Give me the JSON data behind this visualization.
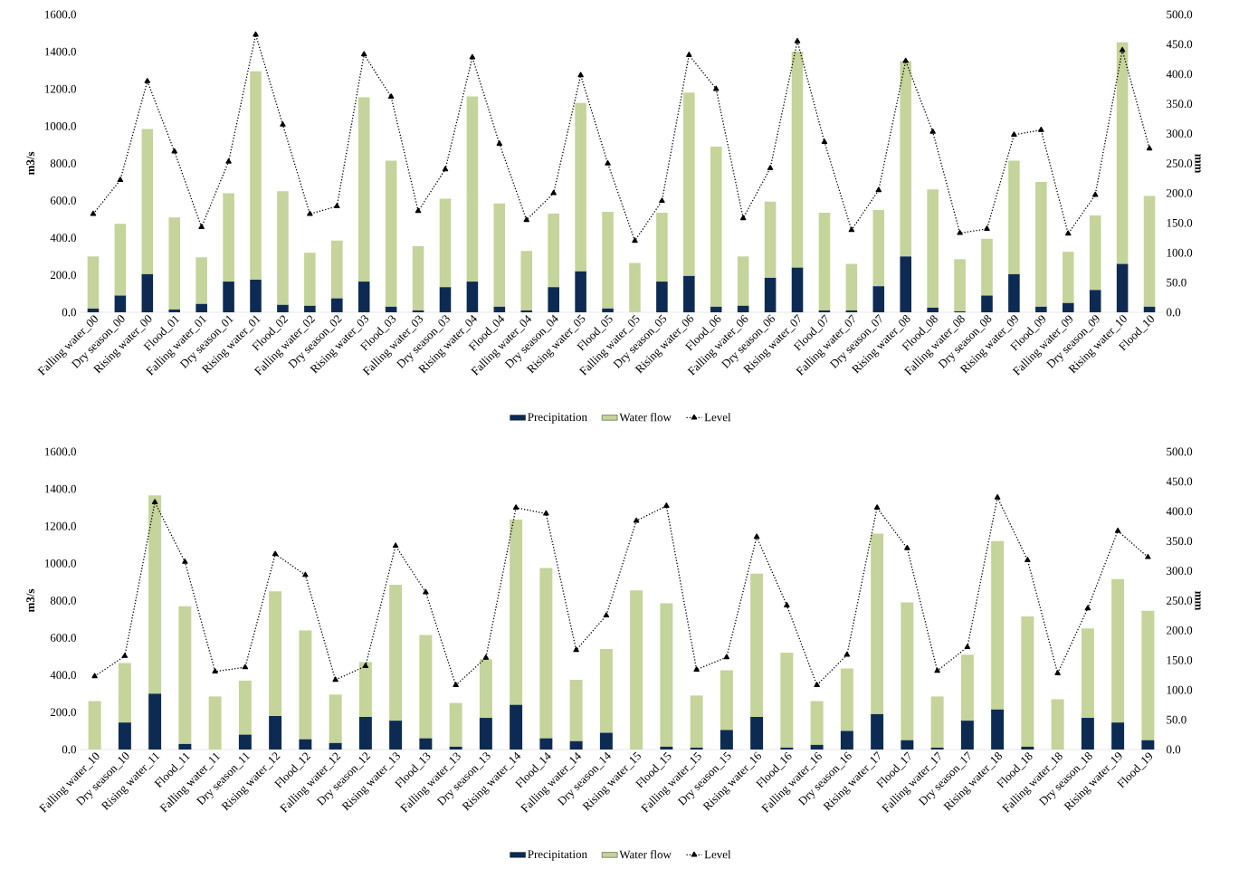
{
  "chart_data": [
    {
      "type": "bar",
      "stacked": true,
      "ylabel": "m3/s",
      "y2label": "mm",
      "legend": "bottom",
      "categories": [
        "Falling water_00",
        "Dry season_00",
        "Rising water_00",
        "Flood_01",
        "Falling water_01",
        "Dry season_01",
        "Rising water_01",
        "Flood_02",
        "Falling water_02",
        "Dry season_02",
        "Rising water_03",
        "Flood_03",
        "Falling water_03",
        "Dry season_03",
        "Rising water_04",
        "Flood_04",
        "Falling water_04",
        "Dry season_04",
        "Rising water_05",
        "Flood_05",
        "Falling water_05",
        "Dry season_05",
        "Rising water_06",
        "Flood_06",
        "Falling water_06",
        "Dry season_06",
        "Rising water_07",
        "Flood_07",
        "Falling water_07",
        "Dry season_07",
        "Rising water_08",
        "Flood_08",
        "Falling water_08",
        "Dry season_08",
        "Rising water_09",
        "Flood_09",
        "Falling water_09",
        "Dry season_09",
        "Rising water_10",
        "Flood_10"
      ],
      "series": [
        {
          "name": "Precipitation",
          "type": "bar",
          "color": "#0d2b52",
          "values": [
            20,
            90,
            205,
            15,
            45,
            165,
            175,
            40,
            35,
            75,
            165,
            30,
            10,
            135,
            165,
            30,
            10,
            135,
            220,
            20,
            0,
            165,
            195,
            30,
            35,
            185,
            240,
            10,
            10,
            140,
            300,
            25,
            5,
            90,
            205,
            30,
            50,
            120,
            260,
            30
          ]
        },
        {
          "name": "Water flow",
          "type": "bar",
          "color": "#c4d49a",
          "values": [
            280,
            385,
            780,
            495,
            250,
            475,
            1120,
            610,
            285,
            310,
            990,
            785,
            345,
            475,
            995,
            555,
            320,
            395,
            905,
            520,
            265,
            370,
            985,
            860,
            265,
            410,
            1160,
            525,
            250,
            410,
            1050,
            635,
            280,
            305,
            610,
            670,
            275,
            400,
            1190,
            595
          ]
        },
        {
          "name": "Level",
          "type": "line",
          "axis": "y2",
          "color": "#000000",
          "marker": "triangle",
          "line_style": "dotted",
          "values": [
            165,
            222,
            388,
            270,
            143,
            253,
            466,
            315,
            165,
            178,
            433,
            362,
            170,
            240,
            428,
            283,
            155,
            200,
            398,
            250,
            120,
            187,
            432,
            375,
            158,
            242,
            455,
            286,
            138,
            205,
            422,
            303,
            133,
            140,
            298,
            306,
            132,
            197,
            440,
            275
          ]
        }
      ],
      "ylim": [
        0,
        1600
      ],
      "yticks": [
        {
          "value": 0,
          "label": "0.0"
        },
        {
          "value": 200,
          "label": "200.0"
        },
        {
          "value": 400,
          "label": "400.0"
        },
        {
          "value": 600,
          "label": "600.0"
        },
        {
          "value": 800,
          "label": "800.0"
        },
        {
          "value": 1000,
          "label": "1000.0"
        },
        {
          "value": 1200,
          "label": "1200.0"
        },
        {
          "value": 1400,
          "label": "1400.0"
        },
        {
          "value": 1600,
          "label": "1600.0"
        }
      ],
      "y2lim": [
        0,
        500
      ],
      "y2ticks": [
        {
          "value": 0,
          "label": "0.0"
        },
        {
          "value": 50,
          "label": "50.0"
        },
        {
          "value": 100,
          "label": "100.0"
        },
        {
          "value": 150,
          "label": "150.0"
        },
        {
          "value": 200,
          "label": "200.0"
        },
        {
          "value": 250,
          "label": "250.0"
        },
        {
          "value": 300,
          "label": "300.0"
        },
        {
          "value": 350,
          "label": "350.0"
        },
        {
          "value": 400,
          "label": "400.0"
        },
        {
          "value": 450,
          "label": "450.0"
        },
        {
          "value": 500,
          "label": "500.0"
        }
      ]
    },
    {
      "type": "bar",
      "stacked": true,
      "ylabel": "m3/s",
      "y2label": "mm",
      "legend": "bottom",
      "categories": [
        "Falling water_10",
        "Dry season_10",
        "Rising water_11",
        "Flood_11",
        "Falling water_11",
        "Dry season_11",
        "Rising water_12",
        "Flood_12",
        "Falling water_12",
        "Dry season_12",
        "Rising water_13",
        "Flood_13",
        "Falling water_13",
        "Dry season_13",
        "Rising water_14",
        "Flood_14",
        "Falling water_14",
        "Dry season_14",
        "Rising water_15",
        "Flood_15",
        "Falling water_15",
        "Dry season_15",
        "Rising water_16",
        "Flood_16",
        "Falling water_16",
        "Dry season_16",
        "Rising water_17",
        "Flood_17",
        "Falling water_17",
        "Dry season_17",
        "Rising water_18",
        "Flood_18",
        "Falling water_18",
        "Dry season_18",
        "Rising water_19",
        "Flood_19"
      ],
      "series": [
        {
          "name": "Precipitation",
          "type": "bar",
          "color": "#0d2b52",
          "values": [
            0,
            145,
            300,
            30,
            0,
            80,
            180,
            55,
            35,
            175,
            155,
            60,
            15,
            170,
            240,
            60,
            45,
            90,
            0,
            15,
            10,
            105,
            175,
            10,
            25,
            100,
            190,
            50,
            10,
            155,
            215,
            15,
            0,
            170,
            145,
            50
          ]
        },
        {
          "name": "Water flow",
          "type": "bar",
          "color": "#c4d49a",
          "values": [
            260,
            320,
            1065,
            740,
            285,
            290,
            670,
            585,
            260,
            295,
            730,
            555,
            235,
            315,
            995,
            915,
            330,
            450,
            855,
            770,
            280,
            320,
            770,
            510,
            235,
            335,
            970,
            740,
            275,
            355,
            905,
            700,
            270,
            480,
            770,
            695
          ]
        },
        {
          "name": "Level",
          "type": "line",
          "axis": "y2",
          "color": "#000000",
          "marker": "triangle",
          "line_style": "dotted",
          "values": [
            123,
            157,
            415,
            315,
            131,
            138,
            328,
            293,
            117,
            140,
            342,
            264,
            108,
            154,
            406,
            396,
            167,
            225,
            384,
            409,
            134,
            155,
            357,
            242,
            108,
            159,
            406,
            338,
            132,
            172,
            423,
            318,
            128,
            237,
            367,
            323
          ]
        }
      ],
      "ylim": [
        0,
        1600
      ],
      "yticks": [
        {
          "value": 0,
          "label": "0.0"
        },
        {
          "value": 200,
          "label": "200.0"
        },
        {
          "value": 400,
          "label": "400.0"
        },
        {
          "value": 600,
          "label": "600.0"
        },
        {
          "value": 800,
          "label": "800.0"
        },
        {
          "value": 1000,
          "label": "1000.0"
        },
        {
          "value": 1200,
          "label": "1200.0"
        },
        {
          "value": 1400,
          "label": "1400.0"
        },
        {
          "value": 1600,
          "label": "1600.0"
        }
      ],
      "y2lim": [
        0,
        500
      ],
      "y2ticks": [
        {
          "value": 0,
          "label": "0.0"
        },
        {
          "value": 50,
          "label": "50.0"
        },
        {
          "value": 100,
          "label": "100.0"
        },
        {
          "value": 150,
          "label": "150.0"
        },
        {
          "value": 200,
          "label": "200.0"
        },
        {
          "value": 250,
          "label": "250.0"
        },
        {
          "value": 300,
          "label": "300.0"
        },
        {
          "value": 350,
          "label": "350.0"
        },
        {
          "value": 400,
          "label": "400.0"
        },
        {
          "value": 450,
          "label": "450.0"
        },
        {
          "value": 500,
          "label": "500.0"
        }
      ]
    }
  ]
}
